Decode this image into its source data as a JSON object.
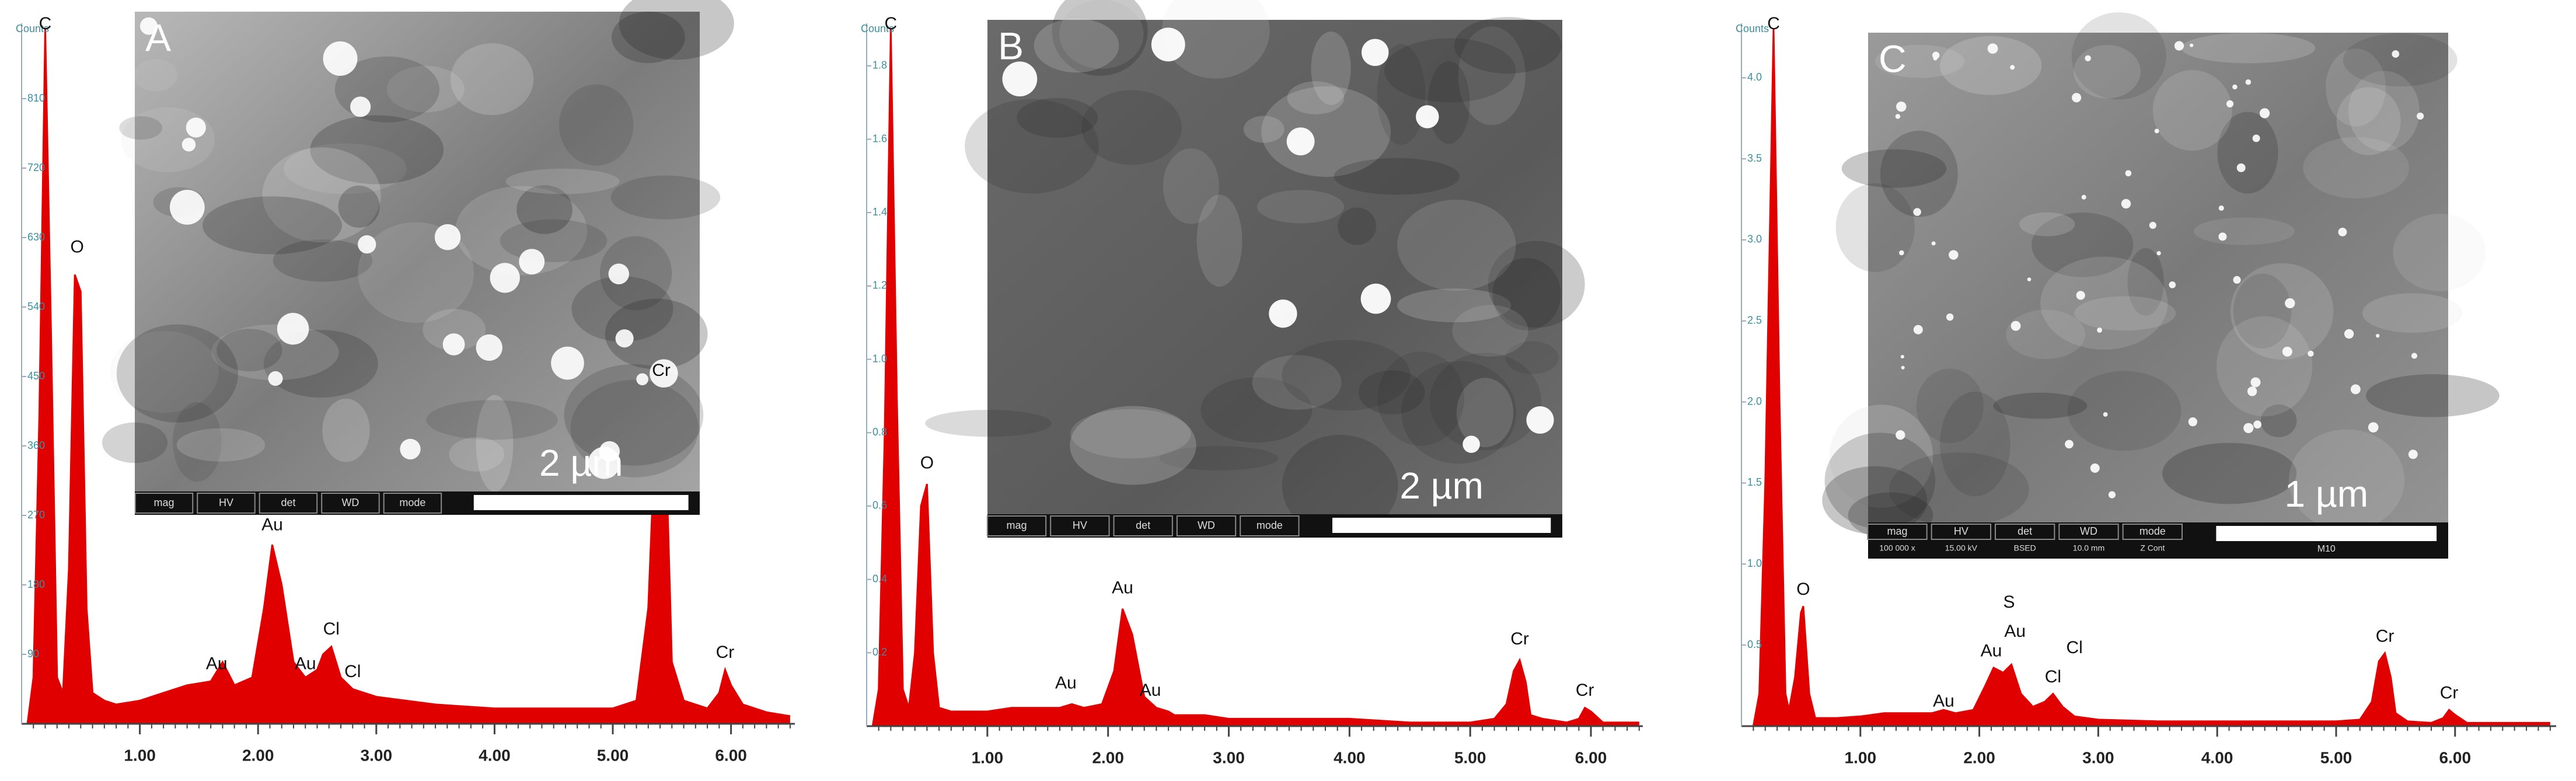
{
  "chart_data": [
    {
      "type": "area",
      "y_label": "Counts",
      "color": "#e00000",
      "xlim": [
        0,
        6.54
      ],
      "ylim": [
        0,
        900
      ],
      "xticks": [
        {
          "value": 1,
          "label": "1.00"
        },
        {
          "value": 2,
          "label": "2.00"
        },
        {
          "value": 3,
          "label": "3.00"
        },
        {
          "value": 4,
          "label": "4.00"
        },
        {
          "value": 5,
          "label": "5.00"
        },
        {
          "value": 6,
          "label": "6.00"
        }
      ],
      "yticks": [
        90,
        180,
        270,
        360,
        450,
        540,
        630,
        720,
        810
      ],
      "x": [
        0.05,
        0.1,
        0.15,
        0.2,
        0.25,
        0.3,
        0.35,
        0.4,
        0.45,
        0.5,
        0.55,
        0.6,
        0.7,
        0.8,
        1.0,
        1.2,
        1.4,
        1.6,
        1.7,
        1.8,
        1.95,
        2.05,
        2.12,
        2.2,
        2.3,
        2.4,
        2.5,
        2.55,
        2.62,
        2.7,
        2.8,
        3.0,
        3.5,
        4.0,
        4.5,
        5.0,
        5.2,
        5.3,
        5.36,
        5.41,
        5.46,
        5.5,
        5.6,
        5.8,
        5.9,
        5.95,
        6.0,
        6.1,
        6.3,
        6.5
      ],
      "values": [
        0,
        60,
        400,
        900,
        500,
        60,
        40,
        200,
        582,
        560,
        150,
        40,
        30,
        25,
        30,
        40,
        50,
        55,
        80,
        50,
        60,
        150,
        232,
        180,
        80,
        60,
        70,
        90,
        100,
        60,
        45,
        35,
        25,
        20,
        20,
        20,
        30,
        150,
        380,
        431,
        300,
        80,
        30,
        20,
        40,
        70,
        50,
        25,
        15,
        10
      ],
      "annotations": [
        {
          "text": "C",
          "x": 0.2,
          "y": 900
        },
        {
          "text": "O",
          "x": 0.47,
          "y": 600
        },
        {
          "text": "Au",
          "x": 1.65,
          "y": 60
        },
        {
          "text": "Au",
          "x": 2.12,
          "y": 240
        },
        {
          "text": "Au",
          "x": 2.4,
          "y": 60
        },
        {
          "text": "Cl",
          "x": 2.62,
          "y": 105
        },
        {
          "text": "Cl",
          "x": 2.8,
          "y": 50
        },
        {
          "text": "Cr",
          "x": 5.41,
          "y": 440
        },
        {
          "text": "Cr",
          "x": 5.95,
          "y": 75
        }
      ],
      "inset": {
        "label": "A",
        "scale_bar": "2 µm",
        "info_bar": [
          "mag",
          "HV",
          "det",
          "WD",
          "mode"
        ]
      }
    },
    {
      "type": "area",
      "y_label": "Counts",
      "color": "#e00000",
      "xlim": [
        0,
        6.43
      ],
      "ylim": [
        0,
        1.9
      ],
      "xticks": [
        {
          "value": 1,
          "label": "1.00"
        },
        {
          "value": 2,
          "label": "2.00"
        },
        {
          "value": 3,
          "label": "3.00"
        },
        {
          "value": 4,
          "label": "4.00"
        },
        {
          "value": 5,
          "label": "5.00"
        },
        {
          "value": 6,
          "label": "6.00"
        }
      ],
      "yticks": [
        0.2,
        0.4,
        0.6,
        0.8,
        {
          "value": 1,
          "label": "1.0"
        },
        1.2,
        1.4,
        1.6,
        1.8
      ],
      "x": [
        0.05,
        0.1,
        0.15,
        0.2,
        0.25,
        0.3,
        0.35,
        0.4,
        0.45,
        0.5,
        0.55,
        0.6,
        0.7,
        0.8,
        1.0,
        1.2,
        1.4,
        1.6,
        1.7,
        1.8,
        1.95,
        2.05,
        2.12,
        2.2,
        2.3,
        2.4,
        2.5,
        2.55,
        2.62,
        2.7,
        2.8,
        3.0,
        3.5,
        4.0,
        4.5,
        5.0,
        5.2,
        5.3,
        5.36,
        5.41,
        5.46,
        5.5,
        5.6,
        5.8,
        5.9,
        5.95,
        6.0,
        6.1,
        6.3,
        6.4
      ],
      "values": [
        0,
        0.1,
        0.8,
        1.9,
        0.9,
        0.1,
        0.05,
        0.2,
        0.6,
        0.66,
        0.2,
        0.05,
        0.04,
        0.04,
        0.04,
        0.05,
        0.05,
        0.05,
        0.06,
        0.05,
        0.06,
        0.15,
        0.32,
        0.25,
        0.08,
        0.05,
        0.04,
        0.03,
        0.03,
        0.03,
        0.03,
        0.02,
        0.02,
        0.02,
        0.01,
        0.01,
        0.02,
        0.06,
        0.15,
        0.18,
        0.12,
        0.03,
        0.02,
        0.01,
        0.02,
        0.05,
        0.04,
        0.01,
        0.01,
        0.01
      ],
      "annotations": [
        {
          "text": "C",
          "x": 0.2,
          "y": 1.9
        },
        {
          "text": "O",
          "x": 0.5,
          "y": 0.68
        },
        {
          "text": "Au",
          "x": 1.65,
          "y": 0.08
        },
        {
          "text": "Au",
          "x": 2.12,
          "y": 0.34
        },
        {
          "text": "Au",
          "x": 2.35,
          "y": 0.06
        },
        {
          "text": "Cr",
          "x": 5.41,
          "y": 0.2
        },
        {
          "text": "Cr",
          "x": 5.95,
          "y": 0.06
        }
      ],
      "inset": {
        "label": "B",
        "scale_bar": "2 µm",
        "info_bar": [
          "mag",
          "HV",
          "det",
          "WD",
          "mode"
        ]
      }
    },
    {
      "type": "area",
      "y_label": "Counts",
      "color": "#e00000",
      "xlim": [
        0,
        6.85
      ],
      "ylim": [
        0,
        4.3
      ],
      "xticks": [
        {
          "value": 1,
          "label": "1.00"
        },
        {
          "value": 2,
          "label": "2.00"
        },
        {
          "value": 3,
          "label": "3.00"
        },
        {
          "value": 4,
          "label": "4.00"
        },
        {
          "value": 5,
          "label": "5.00"
        },
        {
          "value": 6,
          "label": "6.00"
        }
      ],
      "yticks": [
        0.5,
        {
          "value": 1,
          "label": "1.0"
        },
        1.5,
        {
          "value": 2,
          "label": "2.0"
        },
        2.5,
        {
          "value": 3,
          "label": "3.0"
        },
        3.5,
        {
          "value": 4,
          "label": "4.0"
        }
      ],
      "x": [
        0.1,
        0.15,
        0.2,
        0.27,
        0.32,
        0.37,
        0.4,
        0.45,
        0.5,
        0.52,
        0.57,
        0.62,
        0.7,
        0.8,
        1.0,
        1.2,
        1.4,
        1.6,
        1.7,
        1.8,
        1.95,
        2.05,
        2.12,
        2.2,
        2.27,
        2.35,
        2.45,
        2.55,
        2.62,
        2.7,
        2.8,
        3.0,
        3.5,
        4.0,
        4.5,
        5.0,
        5.2,
        5.3,
        5.36,
        5.41,
        5.46,
        5.5,
        5.6,
        5.8,
        5.9,
        5.95,
        6.0,
        6.1,
        6.5,
        6.8
      ],
      "values": [
        0,
        0.2,
        1.5,
        4.3,
        2,
        0.2,
        0.1,
        0.3,
        0.7,
        0.74,
        0.2,
        0.05,
        0.05,
        0.05,
        0.06,
        0.08,
        0.08,
        0.08,
        0.1,
        0.08,
        0.1,
        0.25,
        0.36,
        0.33,
        0.38,
        0.2,
        0.12,
        0.15,
        0.2,
        0.12,
        0.06,
        0.04,
        0.03,
        0.03,
        0.03,
        0.03,
        0.04,
        0.15,
        0.4,
        0.45,
        0.3,
        0.08,
        0.03,
        0.02,
        0.05,
        0.1,
        0.07,
        0.02,
        0.02,
        0.02
      ],
      "annotations": [
        {
          "text": "C",
          "x": 0.27,
          "y": 4.3
        },
        {
          "text": "O",
          "x": 0.52,
          "y": 0.76
        },
        {
          "text": "Au",
          "x": 1.7,
          "y": 0.07
        },
        {
          "text": "Au",
          "x": 2.1,
          "y": 0.38
        },
        {
          "text": "Au",
          "x": 2.3,
          "y": 0.5
        },
        {
          "text": "S",
          "x": 2.25,
          "y": 0.68
        },
        {
          "text": "Cl",
          "x": 2.62,
          "y": 0.22
        },
        {
          "text": "Cl",
          "x": 2.8,
          "y": 0.4
        },
        {
          "text": "Cr",
          "x": 5.41,
          "y": 0.47
        },
        {
          "text": "Cr",
          "x": 5.95,
          "y": 0.12
        }
      ],
      "inset": {
        "label": "C",
        "scale_bar": "1 µm",
        "info_bar": [
          "mag",
          "HV",
          "det",
          "WD",
          "mode"
        ],
        "info_values": [
          "100 000 x",
          "15.00 kV",
          "BSED",
          "10.0 mm",
          "Z Cont"
        ],
        "info_note": "M10"
      }
    }
  ]
}
